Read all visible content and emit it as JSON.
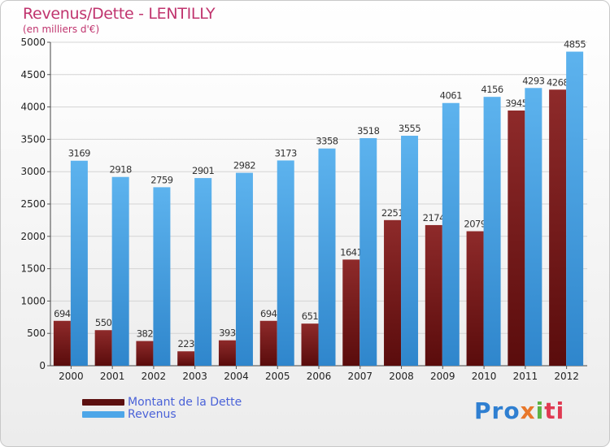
{
  "title": "Revenus/Dette - LENTILLY",
  "subtitle": "(en milliers d'€)",
  "chart_data": {
    "type": "bar",
    "categories": [
      "2000",
      "2001",
      "2002",
      "2003",
      "2004",
      "2005",
      "2006",
      "2007",
      "2008",
      "2009",
      "2010",
      "2011",
      "2012"
    ],
    "series": [
      {
        "name": "Montant de la Dette",
        "values": [
          694,
          550,
          382,
          223,
          393,
          694,
          651,
          1641,
          2251,
          2174,
          2079,
          3945,
          4268
        ],
        "color": "#7a1d1d"
      },
      {
        "name": "Revenus",
        "values": [
          3169,
          2918,
          2759,
          2901,
          2982,
          3173,
          3358,
          3518,
          3555,
          4061,
          4156,
          4293,
          4855
        ],
        "color": "#4da6e8"
      }
    ],
    "series_labels": [
      [
        "694",
        "550",
        "382",
        "223",
        "393",
        "694",
        "651",
        "1641",
        "2251",
        "2174",
        "2079",
        "3945",
        "4268"
      ],
      [
        "3169",
        "2918",
        "2759",
        "2901",
        "2982",
        "3173",
        "3358",
        "3518",
        "3555",
        "4061",
        "4156",
        "4293",
        "4855"
      ]
    ],
    "ylim": [
      0,
      5000
    ],
    "yticks": [
      0,
      500,
      1000,
      1500,
      2000,
      2500,
      3000,
      3500,
      4000,
      4500,
      5000
    ],
    "grid": true,
    "legend": "bottom-left"
  },
  "logo": {
    "p1": "Pro",
    "p2": "x",
    "p3": "i",
    "p4": "ti"
  }
}
